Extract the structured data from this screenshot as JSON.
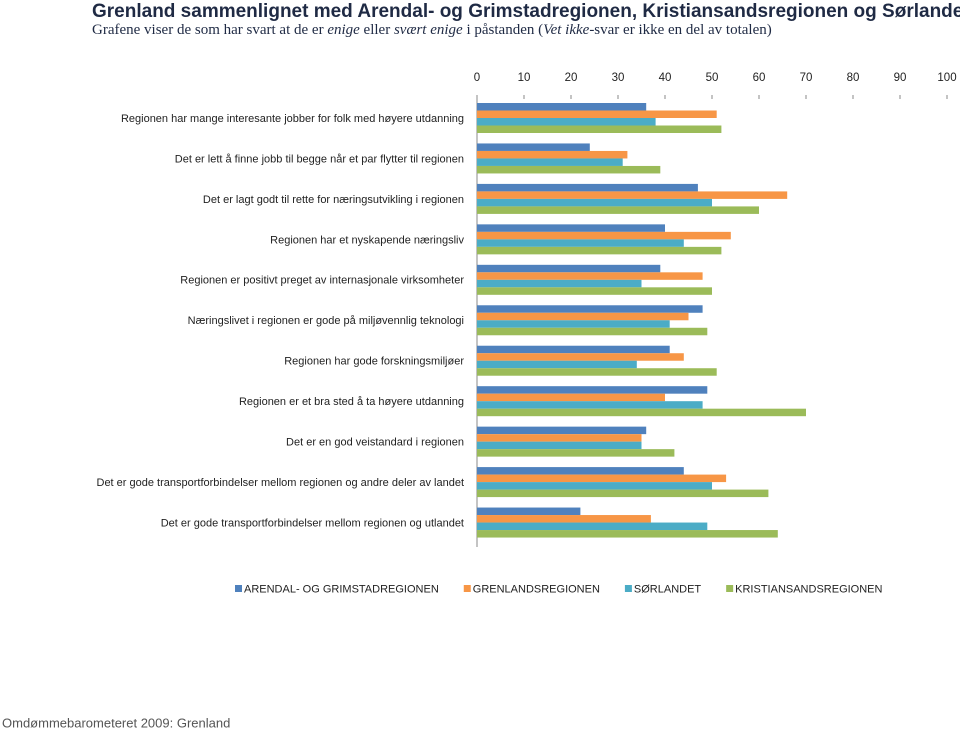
{
  "chart_data": {
    "type": "bar",
    "orientation": "horizontal",
    "title": "Grenland sammenlignet med Arendal- og Grimstadregionen, Kristiansandsregionen og Sørlandet",
    "subtitle_parts": [
      {
        "text": "Grafene viser de som har svart at de er ",
        "italic": false
      },
      {
        "text": "enige",
        "italic": true
      },
      {
        "text": " eller ",
        "italic": false
      },
      {
        "text": "svært enige",
        "italic": true
      },
      {
        "text": " i påstanden (",
        "italic": false
      },
      {
        "text": "Vet ikke",
        "italic": true
      },
      {
        "text": "-svar er ikke en del av totalen)",
        "italic": false
      }
    ],
    "footer": "Omdømmebarometeret 2009: Grenland",
    "categories": [
      "Regionen har mange interesante jobber for folk med høyere utdanning",
      "Det er lett å finne jobb til begge når et par flytter til regionen",
      "Det er lagt godt til rette for næringsutvikling i regionen",
      "Regionen har et nyskapende næringsliv",
      "Regionen er positivt preget av internasjonale virksomheter",
      "Næringslivet i regionen er gode på miljøvennlig teknologi",
      "Regionen har gode forskningsmiljøer",
      "Regionen er et bra sted å ta høyere utdanning",
      "Det er en god veistandard i regionen",
      "Det er gode transportforbindelser mellom regionen og andre deler av landet",
      "Det er gode transportforbindelser mellom regionen og utlandet"
    ],
    "series": [
      {
        "name": "ARENDAL- OG GRIMSTADREGIONEN",
        "color": "#4F81BD",
        "values": [
          36,
          24,
          47,
          40,
          39,
          48,
          41,
          49,
          36,
          44,
          22
        ]
      },
      {
        "name": "GRENLANDSREGIONEN",
        "color": "#F79646",
        "values": [
          51,
          32,
          66,
          54,
          48,
          45,
          44,
          40,
          35,
          53,
          37
        ]
      },
      {
        "name": "SØRLANDET",
        "color": "#4BACC6",
        "values": [
          38,
          31,
          50,
          44,
          35,
          41,
          34,
          48,
          35,
          50,
          49
        ]
      },
      {
        "name": "KRISTIANSANDSREGIONEN",
        "color": "#9BBB59",
        "values": [
          52,
          39,
          60,
          52,
          50,
          49,
          51,
          70,
          42,
          62,
          64
        ]
      }
    ],
    "xlim": [
      0,
      100
    ],
    "xticks": [
      0,
      10,
      20,
      30,
      40,
      50,
      60,
      70,
      80,
      90,
      100
    ],
    "grid": false,
    "legend": "bottom"
  }
}
